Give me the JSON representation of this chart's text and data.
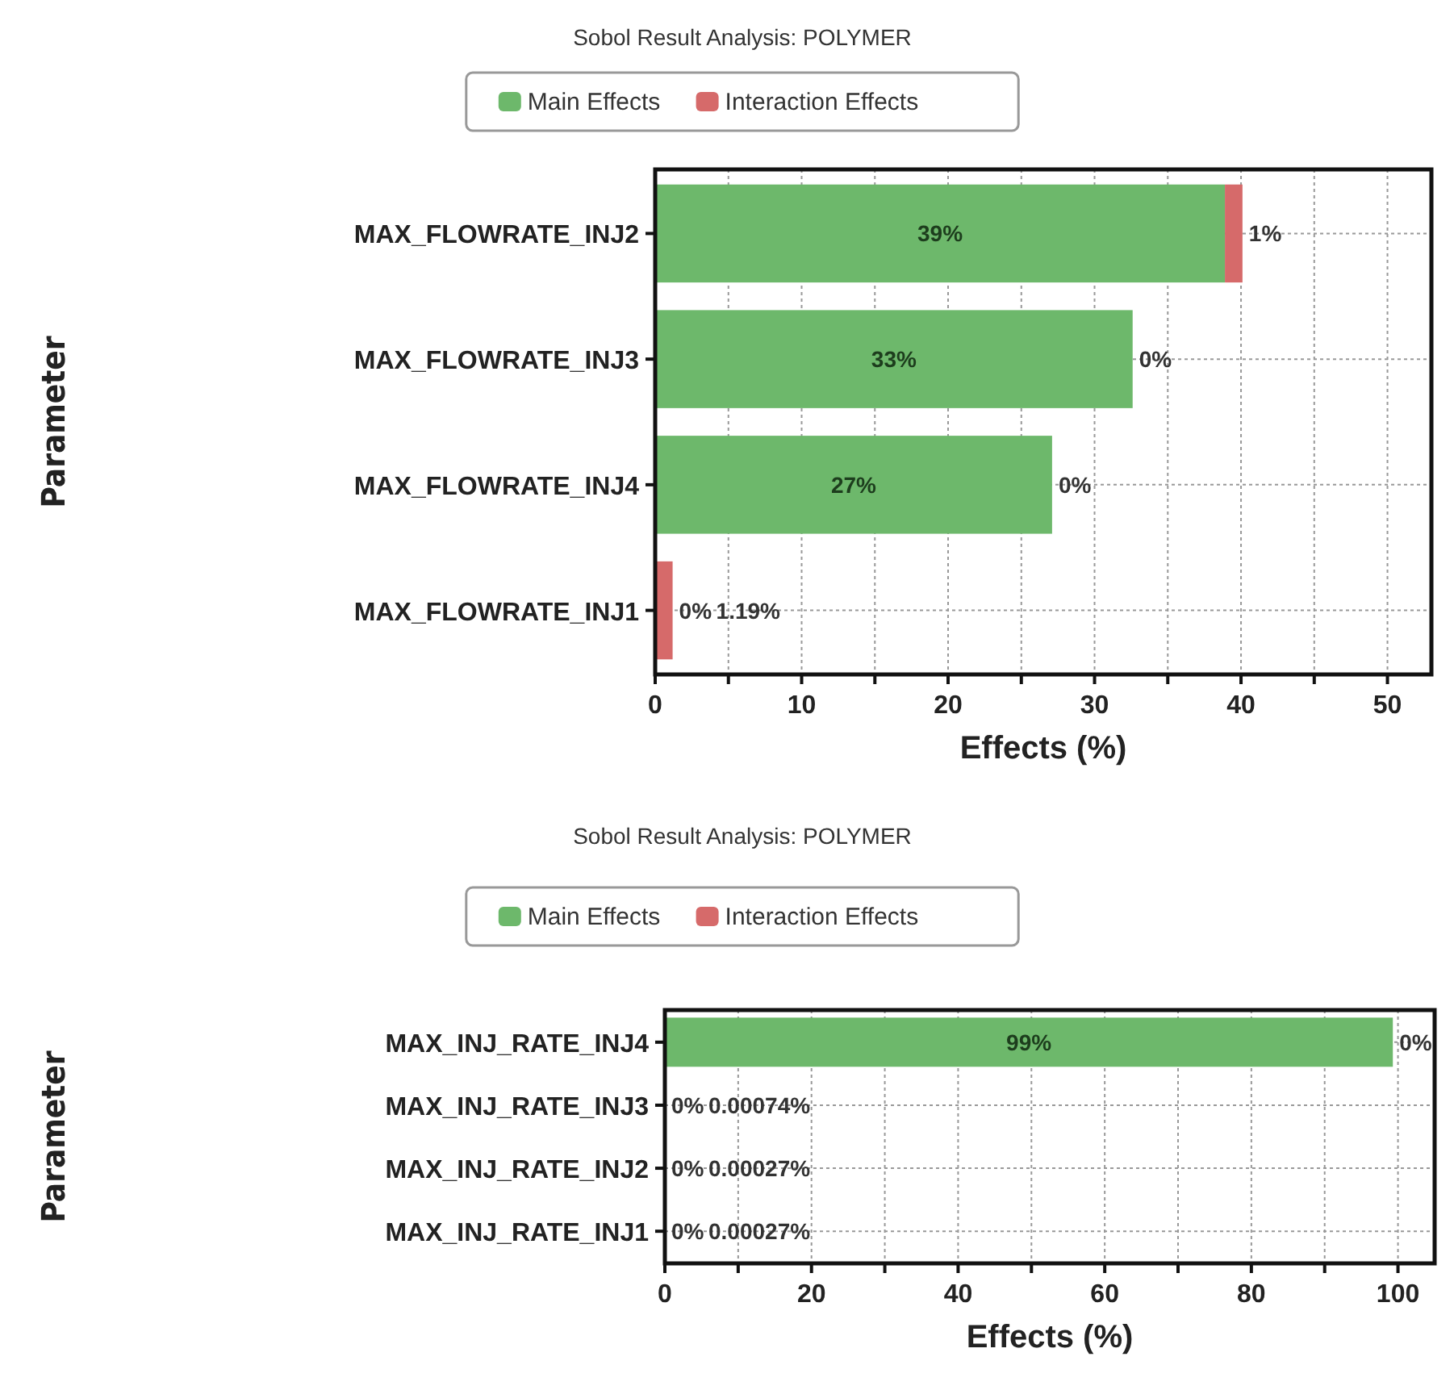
{
  "chart_data": [
    {
      "type": "bar",
      "title": "Sobol Result Analysis: POLYMER",
      "xlabel": "Effects (%)",
      "ylabel": "Parameter",
      "orientation": "horizontal",
      "stacked": true,
      "legend": "top",
      "grid": true,
      "categories": [
        "MAX_FLOWRATE_INJ2",
        "MAX_FLOWRATE_INJ3",
        "MAX_FLOWRATE_INJ4",
        "MAX_FLOWRATE_INJ1"
      ],
      "xlim": [
        0,
        53
      ],
      "xticks": [
        0,
        {
          "value": 5,
          "label": null
        },
        10,
        {
          "value": 15,
          "label": null
        },
        20,
        {
          "value": 25,
          "label": null
        },
        30,
        {
          "value": 35,
          "label": null
        },
        40,
        {
          "value": 45,
          "label": null
        },
        50
      ],
      "series": [
        {
          "name": "Main Effects",
          "color": "#6db86b",
          "values": [
            38.9,
            32.6,
            27.1,
            0
          ],
          "value_labels": [
            "39%",
            "33%",
            "27%",
            "0%"
          ]
        },
        {
          "name": "Interaction Effects",
          "color": "#d66a6a",
          "values": [
            1.2,
            0,
            0,
            1.19
          ],
          "value_labels": [
            "1%",
            "0%",
            "0%",
            "1.19%"
          ]
        }
      ]
    },
    {
      "type": "bar",
      "title": "Sobol Result Analysis: POLYMER",
      "xlabel": "Effects (%)",
      "ylabel": "Parameter",
      "orientation": "horizontal",
      "stacked": true,
      "legend": "top",
      "grid": true,
      "categories": [
        "MAX_INJ_RATE_INJ4",
        "MAX_INJ_RATE_INJ3",
        "MAX_INJ_RATE_INJ2",
        "MAX_INJ_RATE_INJ1"
      ],
      "xlim": [
        0,
        105
      ],
      "xticks": [
        0,
        {
          "value": 10,
          "label": null
        },
        20,
        {
          "value": 30,
          "label": null
        },
        40,
        {
          "value": 50,
          "label": null
        },
        60,
        {
          "value": 70,
          "label": null
        },
        80,
        {
          "value": 90,
          "label": null
        },
        100
      ],
      "series": [
        {
          "name": "Main Effects",
          "color": "#6db86b",
          "values": [
            99.3,
            0,
            0,
            0
          ],
          "value_labels": [
            "99%",
            "0%",
            "0%",
            "0%"
          ]
        },
        {
          "name": "Interaction Effects",
          "color": "#d66a6a",
          "values": [
            0,
            0.00074,
            0.00027,
            0.00027
          ],
          "value_labels": [
            "0%",
            "0.00074%",
            "0.00027%",
            "0.00027%"
          ]
        }
      ]
    }
  ]
}
